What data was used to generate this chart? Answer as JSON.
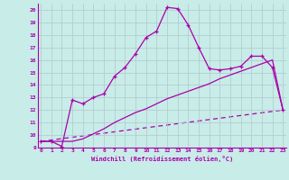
{
  "xlabel": "Windchill (Refroidissement éolien,°C)",
  "bg_color": "#c8ece8",
  "line_color": "#aa00aa",
  "grid_color": "#b0c8cc",
  "x_ticks": [
    0,
    1,
    2,
    3,
    4,
    5,
    6,
    7,
    8,
    9,
    10,
    11,
    12,
    13,
    14,
    15,
    16,
    17,
    18,
    19,
    20,
    21,
    22,
    23
  ],
  "y_ticks": [
    9,
    10,
    11,
    12,
    13,
    14,
    15,
    16,
    17,
    18,
    19,
    20
  ],
  "xlim": [
    -0.3,
    23.3
  ],
  "ylim": [
    9.0,
    20.5
  ],
  "series1_x": [
    0,
    1,
    2,
    3,
    4,
    5,
    6,
    7,
    8,
    9,
    10,
    11,
    12,
    13,
    14,
    15,
    16,
    17,
    18,
    19,
    20,
    21,
    22,
    23
  ],
  "series1_y": [
    9.5,
    9.5,
    9.1,
    12.8,
    12.5,
    13.0,
    13.3,
    14.7,
    15.4,
    16.5,
    17.8,
    18.3,
    20.2,
    20.1,
    18.8,
    17.0,
    15.3,
    15.2,
    15.3,
    15.5,
    16.3,
    16.3,
    15.4,
    12.0
  ],
  "series2_x": [
    0,
    1,
    2,
    3,
    4,
    5,
    6,
    7,
    8,
    9,
    10,
    11,
    12,
    13,
    14,
    15,
    16,
    17,
    18,
    19,
    20,
    21,
    22,
    23
  ],
  "series2_y": [
    9.5,
    9.5,
    9.5,
    9.5,
    9.7,
    10.1,
    10.5,
    11.0,
    11.4,
    11.8,
    12.1,
    12.5,
    12.9,
    13.2,
    13.5,
    13.8,
    14.1,
    14.5,
    14.8,
    15.1,
    15.4,
    15.7,
    16.0,
    12.0
  ],
  "series3_x": [
    0,
    23
  ],
  "series3_y": [
    9.5,
    12.0
  ]
}
